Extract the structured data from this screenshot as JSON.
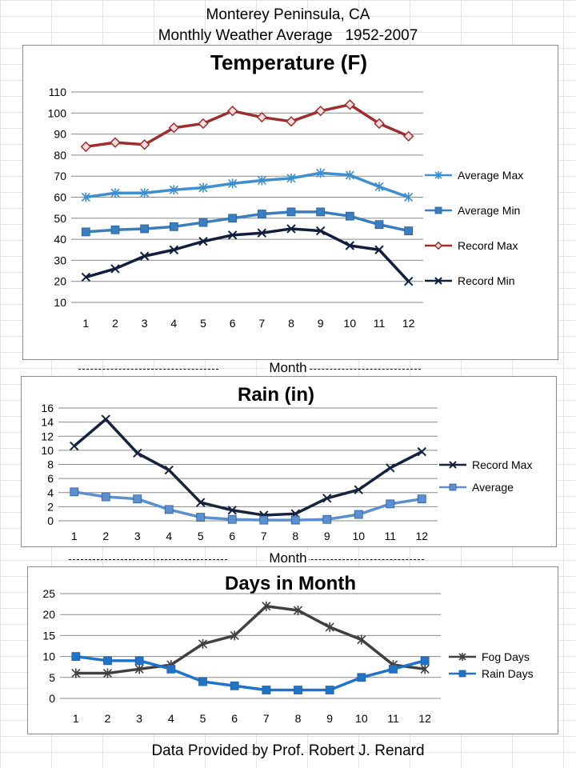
{
  "header": {
    "line1": "Monterey Peninsula, CA",
    "line2": "Monthly Weather Average   1952-2007"
  },
  "footer": "Data Provided by Prof. Robert J. Renard",
  "month_label": "Month",
  "chart_data": [
    {
      "type": "line",
      "title": "Temperature (F)",
      "xlabel": "Month",
      "ylabel": "",
      "x": [
        1,
        2,
        3,
        4,
        5,
        6,
        7,
        8,
        9,
        10,
        11,
        12
      ],
      "ylim": [
        10,
        110
      ],
      "yticks": [
        10,
        20,
        30,
        40,
        50,
        60,
        70,
        80,
        90,
        100,
        110
      ],
      "grid": true,
      "legend": "right",
      "series": [
        {
          "name": "Average Max",
          "color": "#3d8fd1",
          "marker": "star",
          "values": [
            60,
            62,
            62,
            63.5,
            64.5,
            66.5,
            68,
            69,
            71.5,
            70.5,
            65,
            60
          ]
        },
        {
          "name": "Average Min",
          "color": "#3a7ebf",
          "marker": "square",
          "values": [
            43.5,
            44.5,
            45,
            46,
            48,
            50,
            52,
            53,
            53,
            51,
            47,
            44
          ]
        },
        {
          "name": "Record Max",
          "color": "#9e2e2e",
          "marker": "diamond",
          "values": [
            84,
            86,
            85,
            93,
            95,
            101,
            98,
            96,
            101,
            104,
            95,
            89
          ]
        },
        {
          "name": "Record Min",
          "color": "#0f1f3d",
          "marker": "x",
          "values": [
            22,
            26,
            32,
            35,
            39,
            42,
            43,
            45,
            44,
            37,
            35,
            20
          ]
        }
      ]
    },
    {
      "type": "line",
      "title": "Rain (in)",
      "xlabel": "Month",
      "ylabel": "",
      "x": [
        1,
        2,
        3,
        4,
        5,
        6,
        7,
        8,
        9,
        10,
        11,
        12
      ],
      "ylim": [
        0,
        16
      ],
      "yticks": [
        0,
        2,
        4,
        6,
        8,
        10,
        12,
        14,
        16
      ],
      "grid": true,
      "legend": "right",
      "series": [
        {
          "name": "Record Max",
          "color": "#15233f",
          "marker": "x",
          "values": [
            10.6,
            14.4,
            9.6,
            7.2,
            2.6,
            1.5,
            0.8,
            1.0,
            3.2,
            4.4,
            7.5,
            9.8
          ]
        },
        {
          "name": "Average",
          "color": "#5b8fd0",
          "marker": "square",
          "values": [
            4.1,
            3.4,
            3.1,
            1.6,
            0.5,
            0.2,
            0.1,
            0.1,
            0.2,
            0.9,
            2.4,
            3.1
          ]
        }
      ]
    },
    {
      "type": "line",
      "title": "Days in Month",
      "xlabel": "",
      "ylabel": "",
      "x": [
        1,
        2,
        3,
        4,
        5,
        6,
        7,
        8,
        9,
        10,
        11,
        12
      ],
      "ylim": [
        0,
        25
      ],
      "yticks": [
        0,
        5,
        10,
        15,
        20,
        25
      ],
      "grid": true,
      "legend": "right",
      "series": [
        {
          "name": "Fog Days",
          "color": "#404040",
          "marker": "star",
          "values": [
            6,
            6,
            7,
            8,
            13,
            15,
            22,
            21,
            17,
            14,
            8,
            7
          ]
        },
        {
          "name": "Rain Days",
          "color": "#1f73c9",
          "marker": "square",
          "values": [
            10,
            9,
            9,
            7,
            4,
            3,
            2,
            2,
            2,
            5,
            7,
            9
          ]
        }
      ]
    }
  ]
}
